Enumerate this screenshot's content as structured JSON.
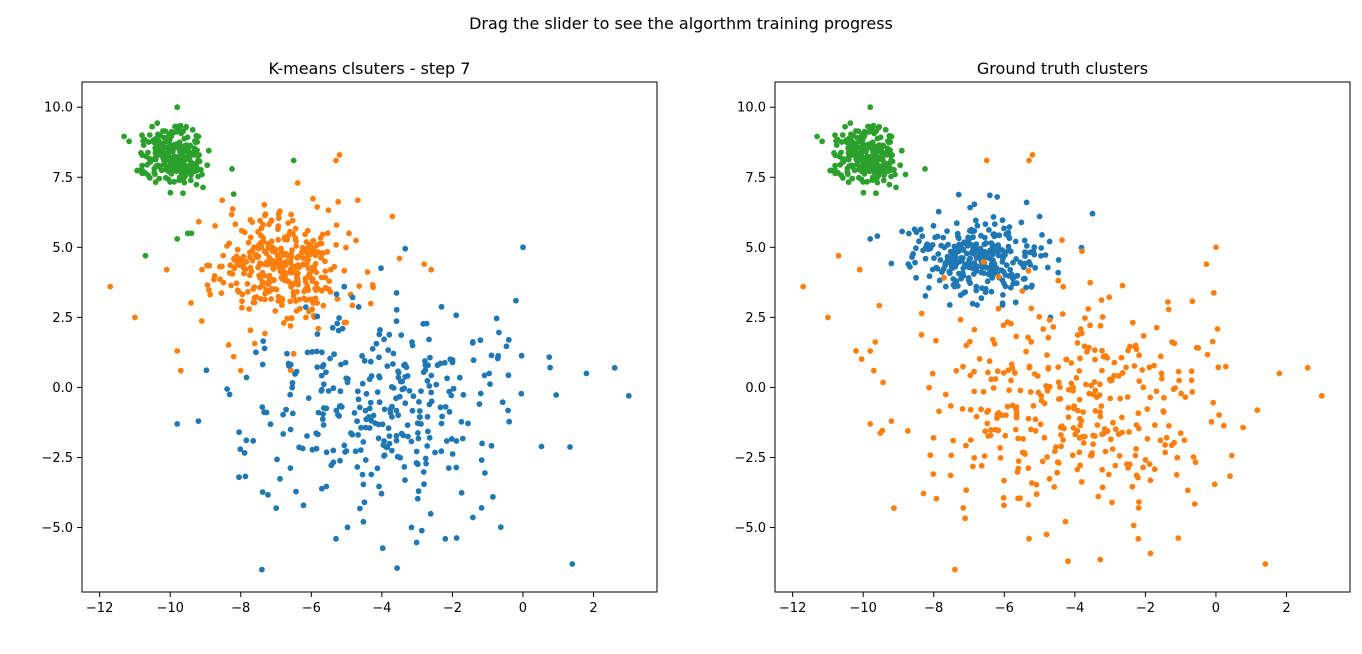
{
  "figure": {
    "suptitle": "Drag the slider to see the algorthm training progress"
  },
  "colors": {
    "c0": "#1f77b4",
    "c1": "#ff7f0e",
    "c2": "#2ca02c"
  },
  "chart_data": [
    {
      "type": "scatter",
      "title": "K-means clsuters - step 7",
      "xlim": [
        -12.5,
        3.8
      ],
      "ylim": [
        -7.3,
        10.9
      ],
      "xticks": [
        -12,
        -10,
        -8,
        -6,
        -4,
        -2,
        0,
        2
      ],
      "yticks": [
        -5.0,
        -2.5,
        0.0,
        2.5,
        5.0,
        7.5,
        10.0
      ],
      "series": [
        {
          "color": "#2ca02c",
          "cluster": "green",
          "center": [
            -9.9,
            8.3
          ],
          "spread": [
            0.45,
            0.5
          ],
          "n": 240,
          "extra": [
            [
              -10.7,
              4.7
            ],
            [
              -9.8,
              5.3
            ],
            [
              -9.5,
              5.5
            ],
            [
              -9.4,
              5.5
            ],
            [
              -8.2,
              6.9
            ],
            [
              -6.5,
              8.1
            ],
            [
              -9.8,
              10.0
            ],
            [
              -10.8,
              9.0
            ]
          ]
        },
        {
          "color": "#ff7f0e",
          "cluster": "orange",
          "center": [
            -6.8,
            4.4
          ],
          "spread": [
            1.0,
            1.0
          ],
          "n": 360,
          "extra": [
            [
              -11.7,
              3.6
            ],
            [
              -11.0,
              2.5
            ],
            [
              -10.1,
              4.2
            ],
            [
              -9.8,
              1.3
            ],
            [
              -9.7,
              0.6
            ],
            [
              -5.2,
              8.3
            ],
            [
              -5.3,
              8.1
            ],
            [
              -3.7,
              6.1
            ],
            [
              -2.8,
              4.4
            ],
            [
              -2.6,
              4.2
            ],
            [
              -8.0,
              0.6
            ],
            [
              -8.2,
              1.1
            ],
            [
              -6.5,
              1.2
            ],
            [
              -5.8,
              2.1
            ]
          ]
        },
        {
          "color": "#1f77b4",
          "cluster": "blue",
          "center": [
            -4.0,
            -0.6
          ],
          "spread": [
            1.9,
            1.9
          ],
          "n": 330,
          "extra": [
            [
              0.0,
              5.0
            ],
            [
              1.8,
              0.5
            ],
            [
              2.6,
              0.7
            ],
            [
              3.0,
              -0.3
            ],
            [
              1.4,
              -6.3
            ],
            [
              -7.4,
              -6.5
            ],
            [
              -2.2,
              -5.4
            ],
            [
              -5.3,
              -5.4
            ],
            [
              -0.4,
              1.7
            ],
            [
              -0.2,
              3.1
            ],
            [
              -9.8,
              -1.3
            ],
            [
              -9.2,
              -1.2
            ]
          ]
        }
      ]
    },
    {
      "type": "scatter",
      "title": "Ground truth clusters",
      "xlim": [
        -12.5,
        3.8
      ],
      "ylim": [
        -7.3,
        10.9
      ],
      "xticks": [
        -12,
        -10,
        -8,
        -6,
        -4,
        -2,
        0,
        2
      ],
      "yticks": [
        -5.0,
        -2.5,
        0.0,
        2.5,
        5.0,
        7.5,
        10.0
      ],
      "series": [
        {
          "color": "#2ca02c",
          "cluster": "green",
          "center": [
            -9.9,
            8.3
          ],
          "spread": [
            0.45,
            0.5
          ],
          "n": 240,
          "extra": [
            [
              -9.8,
              10.0
            ],
            [
              -10.8,
              9.0
            ],
            [
              -8.8,
              7.6
            ]
          ]
        },
        {
          "color": "#1f77b4",
          "cluster": "blue",
          "center": [
            -6.8,
            4.6
          ],
          "spread": [
            0.95,
            0.75
          ],
          "n": 300,
          "extra": [
            [
              -3.5,
              6.2
            ],
            [
              -9.8,
              5.3
            ],
            [
              -9.6,
              5.4
            ],
            [
              -5.0,
              6.1
            ]
          ]
        },
        {
          "color": "#ff7f0e",
          "cluster": "orange",
          "center": [
            -4.0,
            -0.6
          ],
          "spread": [
            2.1,
            2.0
          ],
          "n": 380,
          "extra": [
            [
              -11.7,
              3.6
            ],
            [
              -11.0,
              2.5
            ],
            [
              -10.7,
              4.7
            ],
            [
              -10.1,
              4.2
            ],
            [
              -9.7,
              0.6
            ],
            [
              -9.8,
              1.3
            ],
            [
              -6.5,
              8.1
            ],
            [
              -5.2,
              8.3
            ],
            [
              -5.3,
              8.1
            ],
            [
              0.0,
              5.0
            ],
            [
              1.8,
              0.5
            ],
            [
              2.6,
              0.7
            ],
            [
              3.0,
              -0.3
            ],
            [
              1.4,
              -6.3
            ],
            [
              -7.4,
              -6.5
            ],
            [
              -2.2,
              -5.4
            ],
            [
              -5.3,
              -5.4
            ],
            [
              -9.8,
              -1.3
            ],
            [
              -9.2,
              -1.2
            ]
          ]
        }
      ]
    }
  ]
}
